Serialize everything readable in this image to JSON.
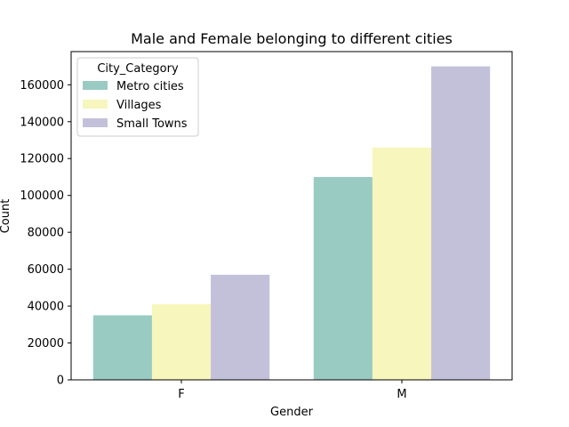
{
  "chart_data": {
    "type": "bar",
    "title": "Male and Female belonging to different cities",
    "xlabel": "Gender",
    "ylabel": "Count",
    "categories": [
      "F",
      "M"
    ],
    "series": [
      {
        "name": "Metro cities",
        "values": [
          35000,
          110000
        ],
        "color": "#99cbc3"
      },
      {
        "name": "Villages",
        "values": [
          41000,
          126000
        ],
        "color": "#f6f6bd"
      },
      {
        "name": "Small Towns",
        "values": [
          57000,
          170000
        ],
        "color": "#c3c1d9"
      }
    ],
    "ylim": [
      0,
      178000
    ],
    "yticks": [
      0,
      20000,
      40000,
      60000,
      80000,
      100000,
      120000,
      140000,
      160000
    ],
    "ytick_labels": [
      "0",
      "20000",
      "40000",
      "60000",
      "80000",
      "100000",
      "120000",
      "140000",
      "160000"
    ],
    "legend": {
      "title": "City_Category",
      "placement": "upper-left"
    },
    "grid": false
  }
}
